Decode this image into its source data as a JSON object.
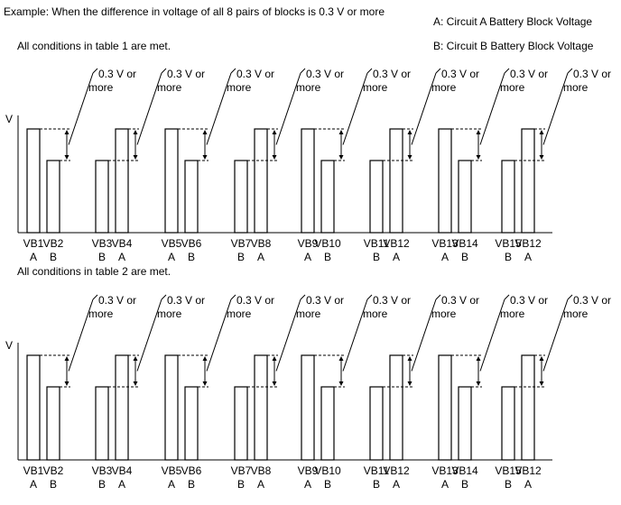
{
  "header": {
    "example": "Example: When the difference in voltage of all 8 pairs of blocks is 0.3 V or more",
    "legend_a": "A: Circuit A Battery Block Voltage",
    "legend_b": "B: Circuit B Battery Block Voltage"
  },
  "annotation": {
    "line1": "0.3 V or",
    "line2": "more"
  },
  "axis_label": "V",
  "panels": [
    {
      "title": "All conditions in table 1 are met.",
      "pairs": [
        {
          "labels": [
            "VB1",
            "VB2"
          ],
          "circuits": [
            "A",
            "B"
          ]
        },
        {
          "labels": [
            "VB3",
            "VB4"
          ],
          "circuits": [
            "B",
            "A"
          ]
        },
        {
          "labels": [
            "VB5",
            "VB6"
          ],
          "circuits": [
            "A",
            "B"
          ]
        },
        {
          "labels": [
            "VB7",
            "VB8"
          ],
          "circuits": [
            "B",
            "A"
          ]
        },
        {
          "labels": [
            "VB9",
            "VB10"
          ],
          "circuits": [
            "A",
            "B"
          ]
        },
        {
          "labels": [
            "VB11",
            "VB12"
          ],
          "circuits": [
            "B",
            "A"
          ]
        },
        {
          "labels": [
            "VB13",
            "VB14"
          ],
          "circuits": [
            "A",
            "B"
          ]
        },
        {
          "labels": [
            "VB15",
            "VB12"
          ],
          "circuits": [
            "B",
            "A"
          ]
        }
      ]
    },
    {
      "title": "All conditions in table 2 are met.",
      "pairs": [
        {
          "labels": [
            "VB1",
            "VB2"
          ],
          "circuits": [
            "A",
            "B"
          ]
        },
        {
          "labels": [
            "VB3",
            "VB4"
          ],
          "circuits": [
            "B",
            "A"
          ]
        },
        {
          "labels": [
            "VB5",
            "VB6"
          ],
          "circuits": [
            "A",
            "B"
          ]
        },
        {
          "labels": [
            "VB7",
            "VB8"
          ],
          "circuits": [
            "B",
            "A"
          ]
        },
        {
          "labels": [
            "VB9",
            "VB10"
          ],
          "circuits": [
            "A",
            "B"
          ]
        },
        {
          "labels": [
            "VB11",
            "VB12"
          ],
          "circuits": [
            "B",
            "A"
          ]
        },
        {
          "labels": [
            "VB13",
            "VB14"
          ],
          "circuits": [
            "A",
            "B"
          ]
        },
        {
          "labels": [
            "VB15",
            "VB12"
          ],
          "circuits": [
            "B",
            "A"
          ]
        }
      ]
    }
  ]
}
